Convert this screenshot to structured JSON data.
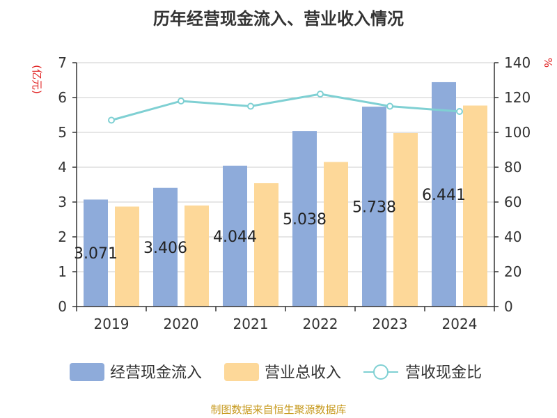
{
  "chart_data": {
    "type": "bar",
    "title": "历年经营现金流入、营业收入情况",
    "y_left_unit": "(亿元)",
    "y_right_unit": "%",
    "categories": [
      "2019",
      "2020",
      "2021",
      "2022",
      "2023",
      "2024"
    ],
    "y_left_ticks": [
      "0",
      "1",
      "2",
      "3",
      "4",
      "5",
      "6",
      "7"
    ],
    "y_right_ticks": [
      "0",
      "20",
      "40",
      "60",
      "80",
      "100",
      "120",
      "140"
    ],
    "ylim_left": [
      0,
      7
    ],
    "ylim_right": [
      0,
      140
    ],
    "grid": true,
    "legend_position": "bottom",
    "series": [
      {
        "name": "经营现金流入",
        "kind": "bar",
        "axis": "left",
        "color": "#8eabda",
        "values": [
          3.071,
          3.406,
          4.044,
          5.038,
          5.738,
          6.441
        ],
        "labels": [
          "3.071",
          "3.406",
          "4.044",
          "5.038",
          "5.738",
          "6.441"
        ]
      },
      {
        "name": "营业总收入",
        "kind": "bar",
        "axis": "left",
        "color": "#fdd899",
        "values": [
          2.87,
          2.9,
          3.54,
          4.15,
          4.98,
          5.77
        ]
      },
      {
        "name": "营收现金比",
        "kind": "line",
        "axis": "right",
        "color": "#7fd0d3",
        "values": [
          107,
          118,
          115,
          122,
          115,
          112
        ]
      }
    ],
    "source": "制图数据来自恒生聚源数据库"
  }
}
